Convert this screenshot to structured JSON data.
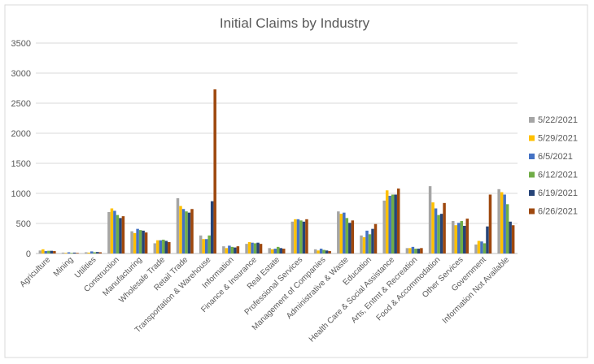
{
  "chart_data": {
    "type": "bar",
    "title": "Initial Claims by Industry",
    "xlabel": "",
    "ylabel": "",
    "ylim": [
      0,
      3500
    ],
    "yticks": [
      0,
      500,
      1000,
      1500,
      2000,
      2500,
      3000,
      3500
    ],
    "grid": true,
    "legend_position": "right",
    "categories": [
      "Agriculture",
      "Mining",
      "Utilities",
      "Construction",
      "Manufacturing",
      "Wholesale Trade",
      "Retail Trade",
      "Transportation & Warehouse",
      "Information",
      "Finance & Insurance",
      "Real Estate",
      "Professional Services",
      "Management of Companies",
      "Administrative & Waste",
      "Education",
      "Health Care & Social Assistance",
      "Arts, Entmt & Recreation",
      "Food & Accommodation",
      "Other Services",
      "Government",
      "Information Not Available"
    ],
    "series": [
      {
        "name": "5/22/2021",
        "color": "#A5A5A5",
        "values": [
          50,
          15,
          20,
          690,
          370,
          170,
          920,
          300,
          120,
          160,
          90,
          530,
          70,
          700,
          300,
          880,
          90,
          1120,
          540,
          150,
          1070
        ]
      },
      {
        "name": "5/29/2021",
        "color": "#FFC000",
        "values": [
          70,
          10,
          15,
          750,
          340,
          220,
          790,
          240,
          90,
          190,
          70,
          570,
          50,
          660,
          270,
          1050,
          90,
          850,
          470,
          210,
          1020
        ]
      },
      {
        "name": "6/5/2021",
        "color": "#4472C4",
        "values": [
          40,
          20,
          35,
          710,
          410,
          220,
          740,
          240,
          130,
          180,
          80,
          570,
          80,
          680,
          380,
          960,
          110,
          750,
          510,
          200,
          980
        ]
      },
      {
        "name": "6/12/2021",
        "color": "#70AD47",
        "values": [
          45,
          10,
          20,
          640,
          390,
          230,
          700,
          300,
          110,
          170,
          110,
          550,
          60,
          590,
          320,
          980,
          80,
          640,
          540,
          170,
          820
        ]
      },
      {
        "name": "6/19/2021",
        "color": "#264478",
        "values": [
          45,
          15,
          25,
          590,
          380,
          210,
          680,
          870,
          100,
          180,
          90,
          530,
          50,
          510,
          410,
          980,
          80,
          660,
          460,
          450,
          530
        ]
      },
      {
        "name": "6/26/2021",
        "color": "#9E480E",
        "values": [
          40,
          10,
          20,
          620,
          350,
          190,
          740,
          2730,
          120,
          160,
          80,
          570,
          40,
          550,
          490,
          1080,
          90,
          840,
          580,
          980,
          470
        ]
      }
    ]
  }
}
